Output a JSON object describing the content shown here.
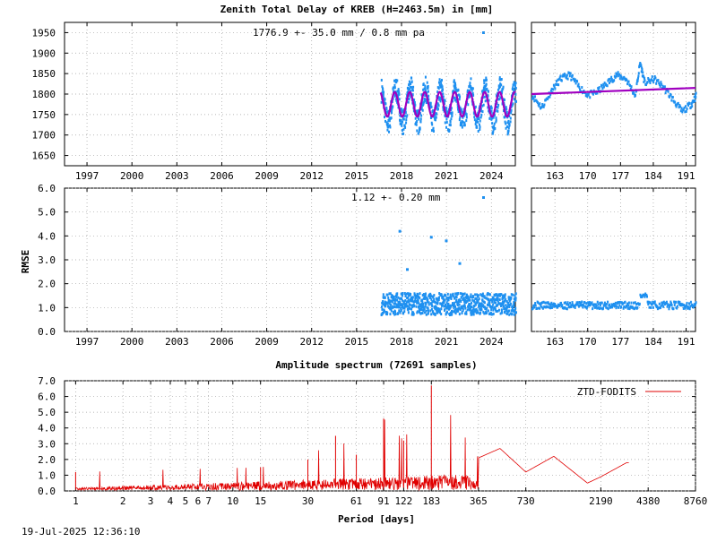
{
  "chart_data": [
    {
      "id": "ztd-main",
      "type": "scatter",
      "title": "Zenith Total Delay of KREB (H=2463.5m) in [mm]",
      "annotation": "1776.9 +-  35.0 mm /  0.8 mm pa",
      "xlim": [
        1995.5,
        2025.6
      ],
      "ylim": [
        1625,
        1975
      ],
      "x_ticks": [
        1997,
        2000,
        2003,
        2006,
        2009,
        2012,
        2015,
        2018,
        2021,
        2024
      ],
      "y_ticks": [
        1650,
        1700,
        1750,
        1800,
        1850,
        1900,
        1950
      ],
      "colors": {
        "data": "#1e90f0",
        "model": "#a000c0"
      },
      "series": [
        {
          "kind": "scatter",
          "x_range": [
            2016.6,
            2025.6
          ],
          "mean": 1775,
          "annual_amplitude": 40,
          "noise": 30
        },
        {
          "kind": "line",
          "x_range": [
            2016.6,
            2025.6
          ],
          "mean": 1775,
          "annual_amplitude": 30
        }
      ]
    },
    {
      "id": "ztd-zoom",
      "type": "scatter",
      "xlim": [
        158,
        193
      ],
      "ylim": [
        1625,
        1975
      ],
      "x_ticks": [
        163,
        170,
        177,
        184,
        191
      ],
      "colors": {
        "data": "#1e90f0",
        "model": "#a000c0"
      },
      "series": [
        {
          "kind": "scatter",
          "x": [
            158,
            160,
            162,
            164,
            166,
            168,
            170,
            172,
            174,
            176,
            178,
            180,
            181,
            182,
            184,
            186,
            188,
            190,
            192,
            193
          ],
          "y": [
            1800,
            1770,
            1810,
            1840,
            1850,
            1820,
            1800,
            1810,
            1830,
            1850,
            1840,
            1800,
            1880,
            1830,
            1840,
            1820,
            1790,
            1760,
            1780,
            1800
          ]
        },
        {
          "kind": "line",
          "x": [
            158,
            193
          ],
          "y": [
            1800,
            1815
          ]
        }
      ]
    },
    {
      "id": "rmse-main",
      "type": "scatter",
      "ylabel": "RMSE",
      "annotation": "1.12 +-  0.20 mm",
      "xlim": [
        1995.5,
        2025.6
      ],
      "ylim": [
        0,
        6
      ],
      "x_ticks": [
        1997,
        2000,
        2003,
        2006,
        2009,
        2012,
        2015,
        2018,
        2021,
        2024
      ],
      "y_ticks": [
        0.0,
        1.0,
        2.0,
        3.0,
        4.0,
        5.0,
        6.0
      ],
      "colors": {
        "data": "#1e90f0"
      },
      "series": [
        {
          "kind": "scatter",
          "x_range": [
            2016.6,
            2025.6
          ],
          "mean": 1.2,
          "spread": 0.45,
          "outliers": [
            [
              2017.8,
              4.25
            ],
            [
              2019.9,
              4.0
            ],
            [
              2020.9,
              3.85
            ],
            [
              2018.3,
              2.65
            ],
            [
              2021.8,
              2.9
            ]
          ]
        }
      ]
    },
    {
      "id": "rmse-zoom",
      "type": "scatter",
      "xlim": [
        158,
        193
      ],
      "ylim": [
        0,
        6
      ],
      "x_ticks": [
        163,
        170,
        177,
        184,
        191
      ],
      "colors": {
        "data": "#1e90f0"
      },
      "series": [
        {
          "kind": "scatter",
          "x_range": [
            158,
            193
          ],
          "mean": 1.15,
          "spread": 0.15
        }
      ]
    },
    {
      "id": "spectrum",
      "type": "line",
      "title": "Amplitude spectrum (72691 samples)",
      "xlabel": "Period [days]",
      "legend": "ZTD-FODITS",
      "legend_position": "top-right",
      "xlim": [
        0.85,
        8760
      ],
      "ylim": [
        0,
        7
      ],
      "x_tick_labels": [
        "1",
        "2",
        "3",
        "4",
        "5",
        "6",
        "7",
        "10",
        "15",
        "30",
        "61",
        "91",
        "122",
        "183",
        "365",
        "730",
        "2190",
        "4380",
        "8760"
      ],
      "x_tick_values": [
        1,
        2,
        3,
        4,
        5,
        6,
        7,
        10,
        15,
        30,
        61,
        91,
        122,
        183,
        365,
        730,
        2190,
        4380,
        8760
      ],
      "y_ticks": [
        0.0,
        1.0,
        2.0,
        3.0,
        4.0,
        5.0,
        6.0,
        7.0
      ],
      "colors": {
        "line": "#e00000"
      },
      "series": [
        {
          "name": "ZTD-FODITS",
          "peaks": [
            [
              1,
              1.2
            ],
            [
              15,
              1.5
            ],
            [
              30,
              2.0
            ],
            [
              45,
              3.5
            ],
            [
              61,
              2.3
            ],
            [
              91,
              4.6
            ],
            [
              122,
              3.2
            ],
            [
              183,
              6.7
            ],
            [
              365,
              2.1
            ],
            [
              500,
              2.7
            ],
            [
              730,
              1.2
            ],
            [
              1100,
              2.2
            ],
            [
              1800,
              0.5
            ],
            [
              2190,
              0.9
            ],
            [
              3200,
              1.8
            ]
          ]
        }
      ]
    }
  ],
  "footer": {
    "timestamp": "19-Jul-2025 12:36:10"
  }
}
